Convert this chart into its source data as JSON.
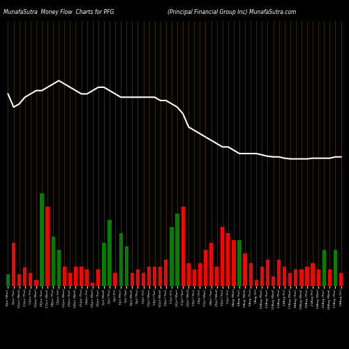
{
  "title_left": "MunafaSutra  Money Flow  Charts for PFG",
  "title_right": "(Principal Financial Group Inc) MunafaSutra.com",
  "background_color": "#000000",
  "grid_color": "#6B4C00",
  "bar_colors": [
    "green",
    "red",
    "red",
    "red",
    "red",
    "red",
    "green",
    "red",
    "green",
    "green",
    "red",
    "red",
    "red",
    "red",
    "red",
    "red",
    "red",
    "green",
    "green",
    "red",
    "green",
    "green",
    "red",
    "red",
    "red",
    "red",
    "red",
    "red",
    "red",
    "green",
    "green",
    "red",
    "red",
    "red",
    "red",
    "red",
    "red",
    "red",
    "red",
    "red",
    "red",
    "green",
    "red",
    "red",
    "red",
    "red",
    "red",
    "red",
    "red",
    "red",
    "red",
    "red",
    "red",
    "red",
    "red",
    "red",
    "green",
    "red",
    "green",
    "red"
  ],
  "bar_heights": [
    18,
    65,
    18,
    28,
    20,
    10,
    140,
    120,
    75,
    55,
    30,
    20,
    30,
    30,
    25,
    5,
    25,
    65,
    100,
    20,
    80,
    60,
    20,
    25,
    20,
    30,
    30,
    30,
    40,
    90,
    110,
    120,
    35,
    25,
    35,
    55,
    65,
    30,
    90,
    80,
    70,
    70,
    50,
    35,
    10,
    30,
    40,
    15,
    40,
    30,
    20,
    25,
    25,
    30,
    35,
    25,
    55,
    25,
    55,
    20
  ],
  "line_values": [
    290,
    270,
    275,
    285,
    290,
    295,
    295,
    300,
    305,
    310,
    305,
    300,
    295,
    290,
    290,
    295,
    300,
    300,
    295,
    290,
    285,
    285,
    285,
    285,
    285,
    285,
    285,
    280,
    280,
    275,
    270,
    260,
    240,
    235,
    230,
    225,
    220,
    215,
    210,
    210,
    205,
    200,
    200,
    200,
    200,
    198,
    196,
    195,
    195,
    193,
    192,
    192,
    192,
    192,
    193,
    193,
    193,
    193,
    195,
    195
  ],
  "xlabels": [
    "8Jun (Mon)",
    "9Jun (Tue)",
    "10Jun (Wed)",
    "11Jun (Thu)",
    "12Jun (Fri)",
    "15Jun (Mon)",
    "16Jun (Tue)",
    "17Jun (Wed)",
    "18Jun (Thu)",
    "19Jun (Fri)",
    "22Jun (Mon)",
    "23Jun (Tue)",
    "24Jun (Wed)",
    "25Jun (Thu)",
    "26Jun (Fri)",
    "29Jun (Mon)",
    "30Jun (Tue)",
    "1Jul (Wed)",
    "2Jul (Thu)",
    "3Jul (Fri)",
    "6Jul (Mon)",
    "7Jul (Tue)",
    "8Jul (Wed)",
    "9Jul (Thu)",
    "10Jul (Fri)",
    "13Jul (Mon)",
    "14Jul (Tue)",
    "15Jul (Wed)",
    "16Jul (Thu)",
    "17Jul (Fri)",
    "20Jul (Mon)",
    "21Jul (Tue)",
    "22Jul (Wed)",
    "23Jul (Thu)",
    "24Jul (Fri)",
    "27Jul (Mon)",
    "28Jul (Tue)",
    "29Jul (Wed)",
    "30Jul (Thu)",
    "31Jul (Fri)",
    "3Aug (Mon)",
    "4Aug (Tue)",
    "5Aug (Wed)",
    "6Aug (Thu)",
    "7Aug (Fri)",
    "10Aug (Mon)",
    "11Aug (Tue)",
    "12Aug (Wed)",
    "13Aug (Thu)",
    "14Aug (Fri)",
    "17Aug (Mon)",
    "18Aug (Tue)",
    "19Aug (Wed)",
    "20Aug (Thu)",
    "21Aug (Fri)",
    "24Aug (Mon)",
    "25Aug (Tue)",
    "26Aug (Wed)",
    "27Aug (Thu)",
    "28Aug (Fri)"
  ]
}
